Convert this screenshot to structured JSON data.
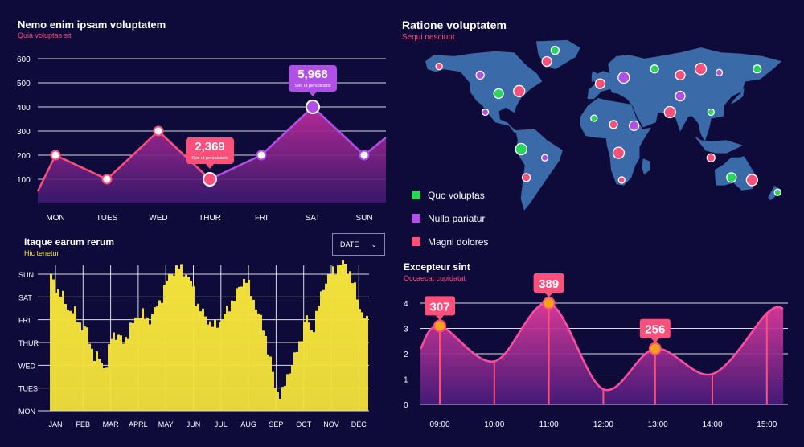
{
  "colors": {
    "background": "#0e0a3a",
    "pink": "#ff4f7b",
    "purple": "#b150e8",
    "yellow": "#f2e13a",
    "map": "#3a6aa8",
    "green": "#29d65a"
  },
  "panels": {
    "weekly": {
      "title": "Nemo enim ipsam voluptatem",
      "subtitle": "Quia voluptas sit"
    },
    "map": {
      "title": "Ratione voluptatem",
      "subtitle": "Sequi nesciunt"
    },
    "monthly": {
      "title": "Itaque earum rerum",
      "subtitle": "Hic tenetur",
      "select": "DATE"
    },
    "hourly": {
      "title": "Excepteur sint",
      "subtitle": "Occaecat cupidatat"
    }
  },
  "legend": [
    {
      "label": "Quo voluptas",
      "color": "#29d65a"
    },
    {
      "label": "Nulla pariatur",
      "color": "#b150e8"
    },
    {
      "label": "Magni dolores",
      "color": "#ff4f7b"
    }
  ],
  "chart_data": [
    {
      "type": "area",
      "title": "Nemo enim ipsam voluptatem",
      "categories": [
        "MON",
        "TUES",
        "WED",
        "THUR",
        "FRI",
        "SAT",
        "SUN"
      ],
      "ylim": [
        0,
        600
      ],
      "yticks": [
        100,
        200,
        300,
        400,
        500,
        600
      ],
      "series": [
        {
          "values": [
            200,
            100,
            300,
            100,
            200,
            400,
            200
          ]
        }
      ],
      "callouts": [
        {
          "category": "THUR",
          "value": "2,369",
          "label": "Sed ut perspiciatis",
          "color": "#ff4f7b"
        },
        {
          "category": "SAT",
          "value": "5,968",
          "label": "Sed ut perspiciatis",
          "color": "#b150e8"
        }
      ],
      "grid": true
    },
    {
      "type": "area",
      "title": "Itaque earum rerum",
      "categories": [
        "JAN",
        "FEB",
        "MAR",
        "APRL",
        "MAY",
        "JUN",
        "JUL",
        "AUG",
        "SEP",
        "OCT",
        "NOV",
        "DEC"
      ],
      "ytick_labels": [
        "MON",
        "TUES",
        "WED",
        "THUR",
        "FRI",
        "SAT",
        "SUN"
      ],
      "profile": [
        5.9,
        5.3,
        5.0,
        4.4,
        4.3,
        3.7,
        3.5,
        2.4,
        2.3,
        1.8,
        3.4,
        3.3,
        3.0,
        3.6,
        4.1,
        4.3,
        3.9,
        4.4,
        4.8,
        5.7,
        6.1,
        6.3,
        6.1,
        5.7,
        4.7,
        4.3,
        3.9,
        3.7,
        4.0,
        4.4,
        4.9,
        5.4,
        5.9,
        5.1,
        4.4,
        3.6,
        2.4,
        0.9,
        0.7,
        1.6,
        2.3,
        3.0,
        4.2,
        3.4,
        4.6,
        5.6,
        6.0,
        6.3,
        6.5,
        6.2,
        5.4,
        4.4,
        3.9
      ],
      "grid": true
    },
    {
      "type": "area",
      "title": "Excepteur sint",
      "categories": [
        "09:00",
        "10:00",
        "11:00",
        "12:00",
        "13:00",
        "14:00",
        "15:00"
      ],
      "ylim": [
        0,
        4
      ],
      "yticks": [
        0,
        1,
        2,
        3,
        4
      ],
      "x": [
        9.0,
        10.0,
        11.0,
        12.0,
        12.95,
        14.0,
        15.0,
        15.3
      ],
      "series": [
        {
          "values": [
            3.1,
            1.7,
            4.0,
            0.6,
            2.2,
            1.2,
            3.6,
            3.8
          ]
        }
      ],
      "callouts": [
        {
          "x": 9.0,
          "value": "307"
        },
        {
          "x": 11.0,
          "value": "389"
        },
        {
          "x": 12.95,
          "value": "256"
        }
      ],
      "grid": true
    }
  ],
  "map_dots": [
    {
      "lon": -155,
      "lat": 62,
      "color": "#ff4f7b"
    },
    {
      "lon": -115,
      "lat": 55,
      "color": "#b150e8"
    },
    {
      "lon": -97,
      "lat": 40,
      "color": "#29d65a"
    },
    {
      "lon": -77,
      "lat": 42,
      "color": "#ff4f7b"
    },
    {
      "lon": -110,
      "lat": 25,
      "color": "#b150e8"
    },
    {
      "lon": -42,
      "lat": 75,
      "color": "#29d65a"
    },
    {
      "lon": -50,
      "lat": 66,
      "color": "#ff4f7b"
    },
    {
      "lon": -75,
      "lat": -5,
      "color": "#29d65a"
    },
    {
      "lon": -52,
      "lat": -12,
      "color": "#b150e8"
    },
    {
      "lon": -70,
      "lat": -28,
      "color": "#ff4f7b"
    },
    {
      "lon": 2,
      "lat": 48,
      "color": "#ff4f7b"
    },
    {
      "lon": 25,
      "lat": 53,
      "color": "#b150e8"
    },
    {
      "lon": -4,
      "lat": 20,
      "color": "#29d65a"
    },
    {
      "lon": 15,
      "lat": 15,
      "color": "#ff4f7b"
    },
    {
      "lon": 35,
      "lat": 14,
      "color": "#b150e8"
    },
    {
      "lon": 20,
      "lat": -8,
      "color": "#ff4f7b"
    },
    {
      "lon": 23,
      "lat": -30,
      "color": "#ff4f7b"
    },
    {
      "lon": 55,
      "lat": 60,
      "color": "#29d65a"
    },
    {
      "lon": 80,
      "lat": 55,
      "color": "#ff4f7b"
    },
    {
      "lon": 100,
      "lat": 60,
      "color": "#ff4f7b"
    },
    {
      "lon": 118,
      "lat": 57,
      "color": "#b150e8"
    },
    {
      "lon": 155,
      "lat": 60,
      "color": "#29d65a"
    },
    {
      "lon": 80,
      "lat": 38,
      "color": "#b150e8"
    },
    {
      "lon": 70,
      "lat": 25,
      "color": "#ff4f7b"
    },
    {
      "lon": 110,
      "lat": 25,
      "color": "#29d65a"
    },
    {
      "lon": 110,
      "lat": -12,
      "color": "#ff4f7b"
    },
    {
      "lon": 130,
      "lat": -28,
      "color": "#29d65a"
    },
    {
      "lon": 150,
      "lat": -30,
      "color": "#ff4f7b"
    },
    {
      "lon": 175,
      "lat": -40,
      "color": "#29d65a"
    }
  ]
}
